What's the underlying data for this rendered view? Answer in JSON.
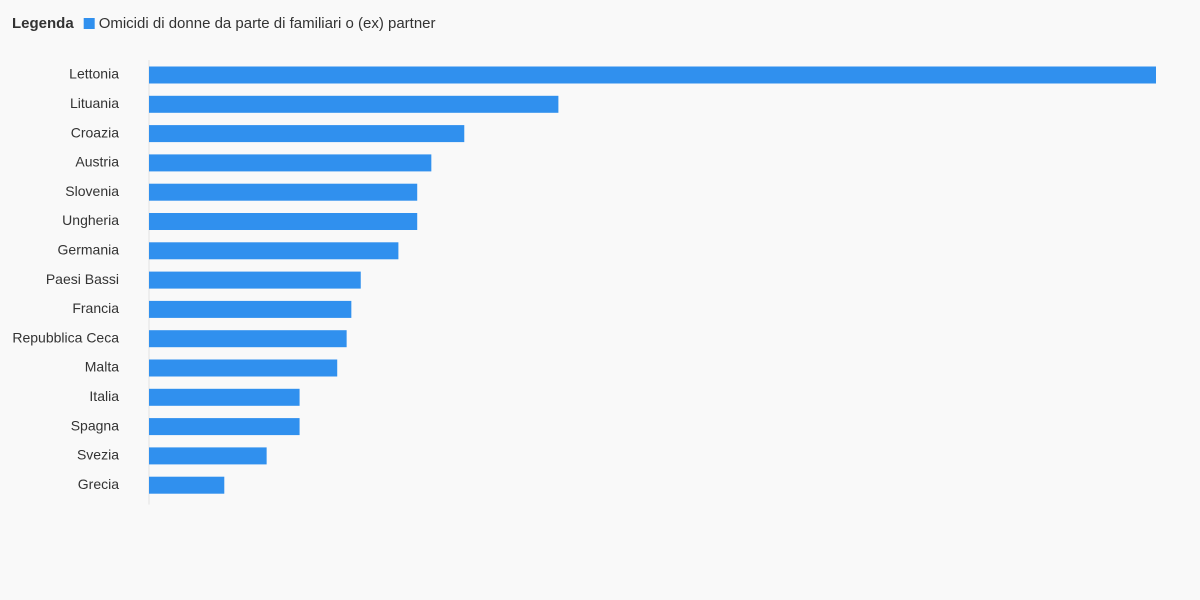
{
  "chart_data": {
    "type": "hbar",
    "legend_title": "Legenda",
    "legend": "top-left",
    "categories": [
      "Lettonia",
      "Lituania",
      "Croazia",
      "Austria",
      "Slovenia",
      "Ungheria",
      "Germania",
      "Paesi Bassi",
      "Francia",
      "Repubblica Ceca",
      "Malta",
      "Italia",
      "Spagna",
      "Svezia",
      "Grecia"
    ],
    "series": [
      {
        "name": "Omicidi di donne da parte di familiari o (ex) partner",
        "color": "#3090ee",
        "values": [
          2.14,
          0.87,
          0.67,
          0.6,
          0.57,
          0.57,
          0.53,
          0.45,
          0.43,
          0.42,
          0.4,
          0.32,
          0.32,
          0.25,
          0.16
        ]
      }
    ],
    "xlim": [
      0,
      2.14
    ]
  }
}
